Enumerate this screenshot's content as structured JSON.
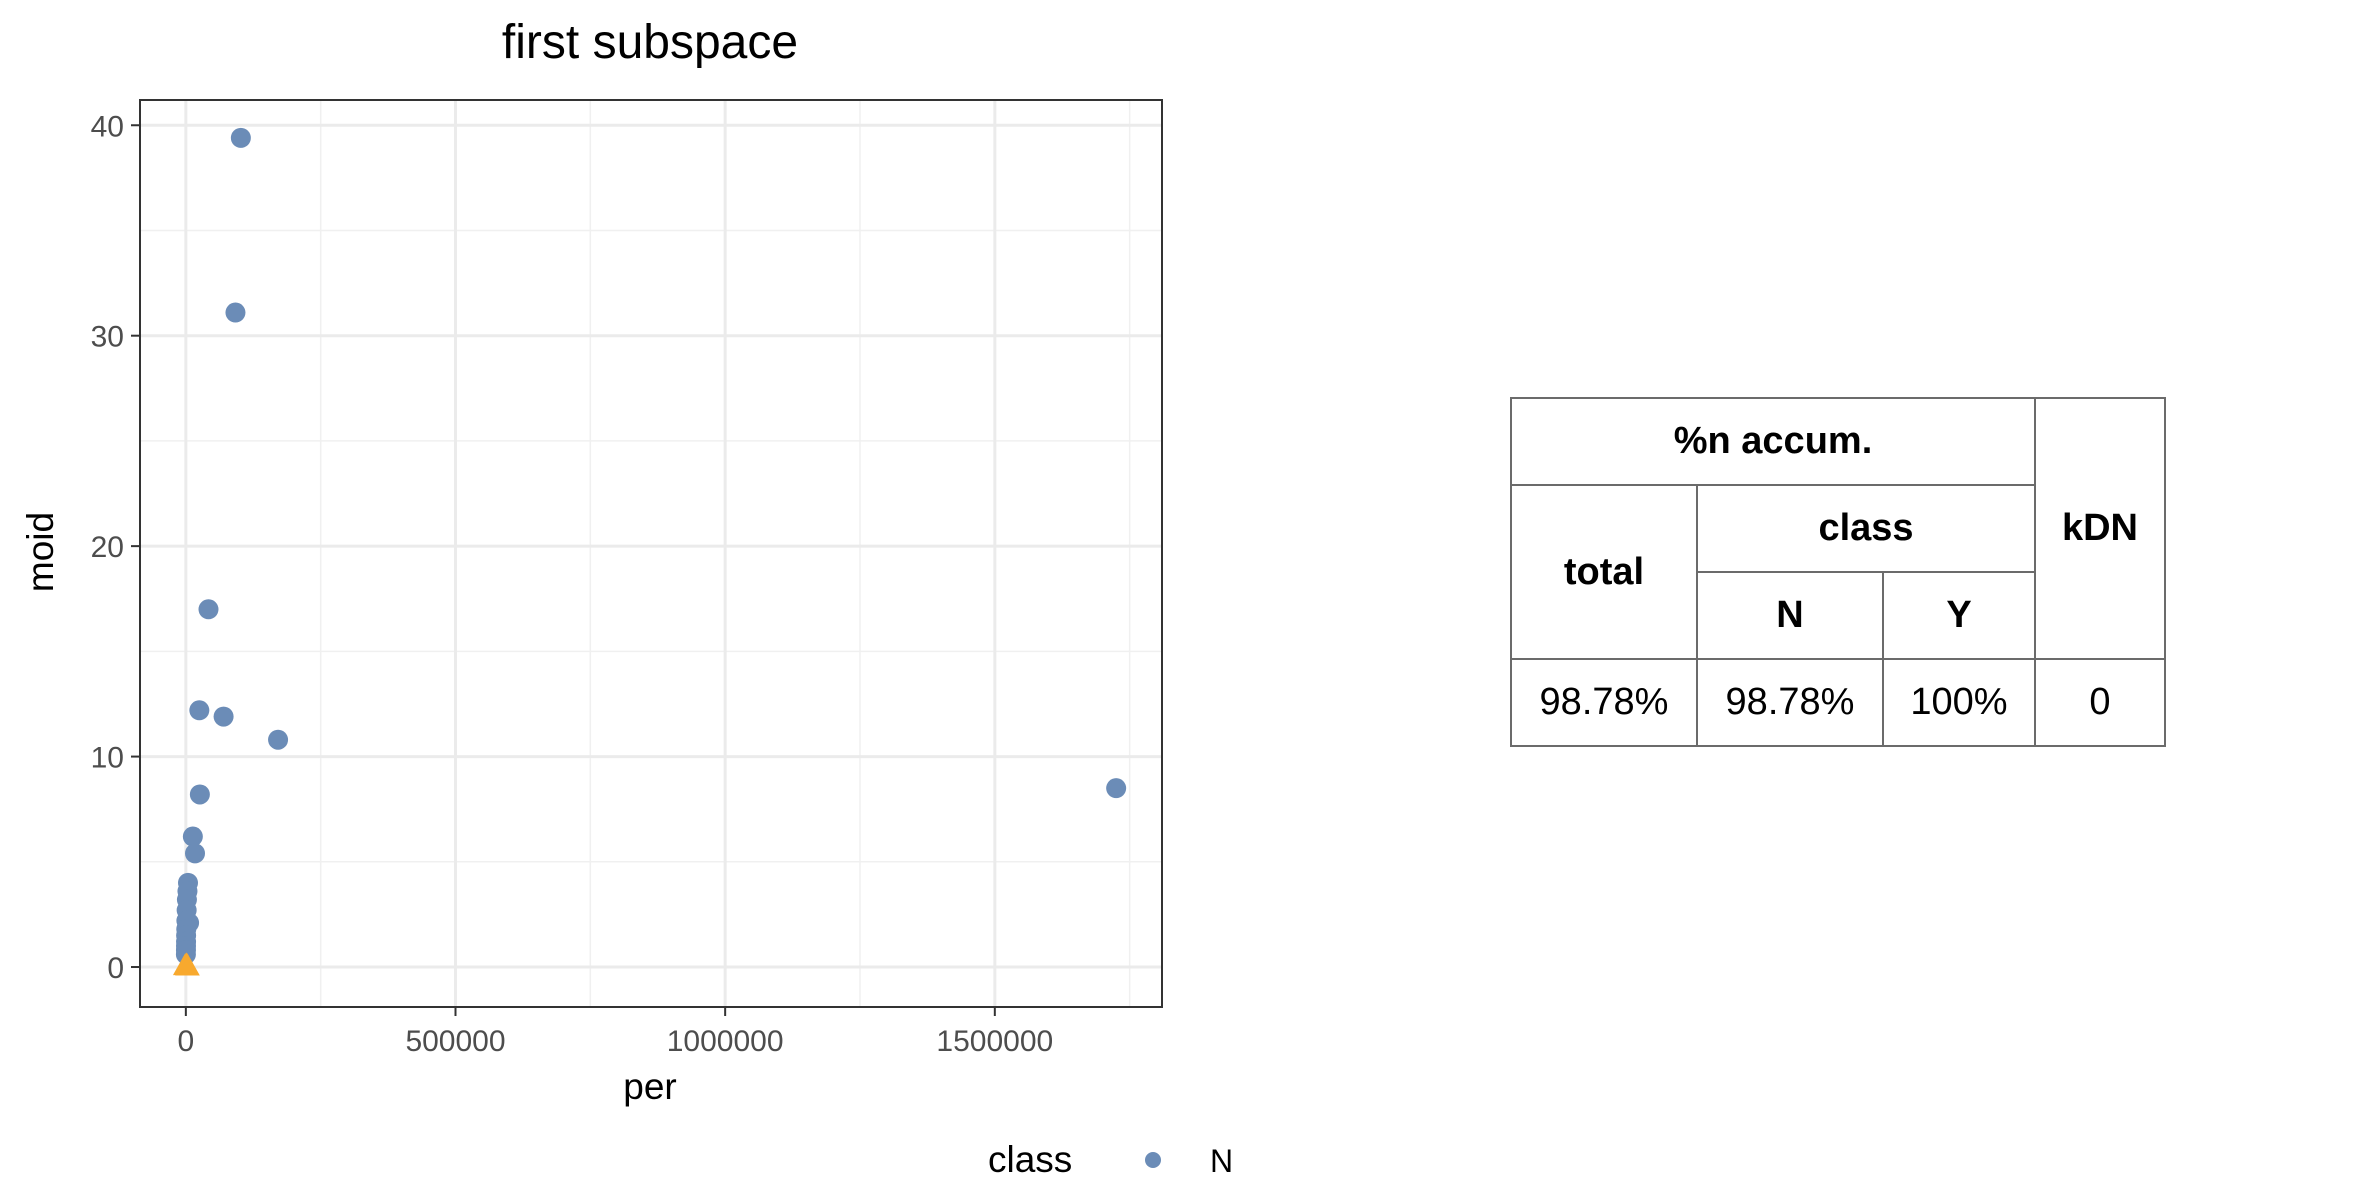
{
  "chart_data": {
    "type": "scatter",
    "title": "first subspace",
    "xlabel": "per",
    "ylabel": "moid",
    "xlim": [
      -85000,
      1810000
    ],
    "ylim": [
      -1.9,
      41.2
    ],
    "x_ticks": [
      0,
      500000,
      1000000,
      1500000
    ],
    "x_tick_labels": [
      "0",
      "500000",
      "1000000",
      "1500000"
    ],
    "y_ticks": [
      0,
      10,
      20,
      30,
      40
    ],
    "y_tick_labels": [
      "0",
      "10",
      "20",
      "30",
      "40"
    ],
    "grid": true,
    "legend": {
      "title": "class",
      "position": "bottom"
    },
    "series": [
      {
        "name": "N",
        "marker": "circle",
        "color": "#6B8CB7",
        "points": [
          [
            102000,
            39.4
          ],
          [
            92000,
            31.1
          ],
          [
            42000,
            17.0
          ],
          [
            25000,
            12.2
          ],
          [
            70000,
            11.9
          ],
          [
            171000,
            10.8
          ],
          [
            26000,
            8.2
          ],
          [
            1725000,
            8.5
          ],
          [
            13000,
            6.2
          ],
          [
            17000,
            5.4
          ],
          [
            4000,
            4.0
          ],
          [
            3000,
            3.6
          ],
          [
            2000,
            3.2
          ],
          [
            1500,
            2.7
          ],
          [
            6000,
            2.1
          ],
          [
            1000,
            2.2
          ],
          [
            800,
            1.8
          ],
          [
            500,
            1.5
          ],
          [
            400,
            1.2
          ],
          [
            300,
            1.0
          ],
          [
            200,
            0.8
          ],
          [
            100,
            0.6
          ]
        ]
      },
      {
        "name": "Y",
        "marker": "triangle",
        "color": "#F8A92E",
        "points": [
          [
            -1000,
            0.05
          ],
          [
            1500,
            0.08
          ],
          [
            3000,
            0.03
          ]
        ]
      }
    ]
  },
  "table": {
    "header_group": "%n accum.",
    "col_total": "total",
    "col_class": "class",
    "col_n": "N",
    "col_y": "Y",
    "col_kdn": "kDN",
    "row": {
      "total": "98.78%",
      "n": "98.78%",
      "y": "100%",
      "kdn": "0"
    }
  }
}
